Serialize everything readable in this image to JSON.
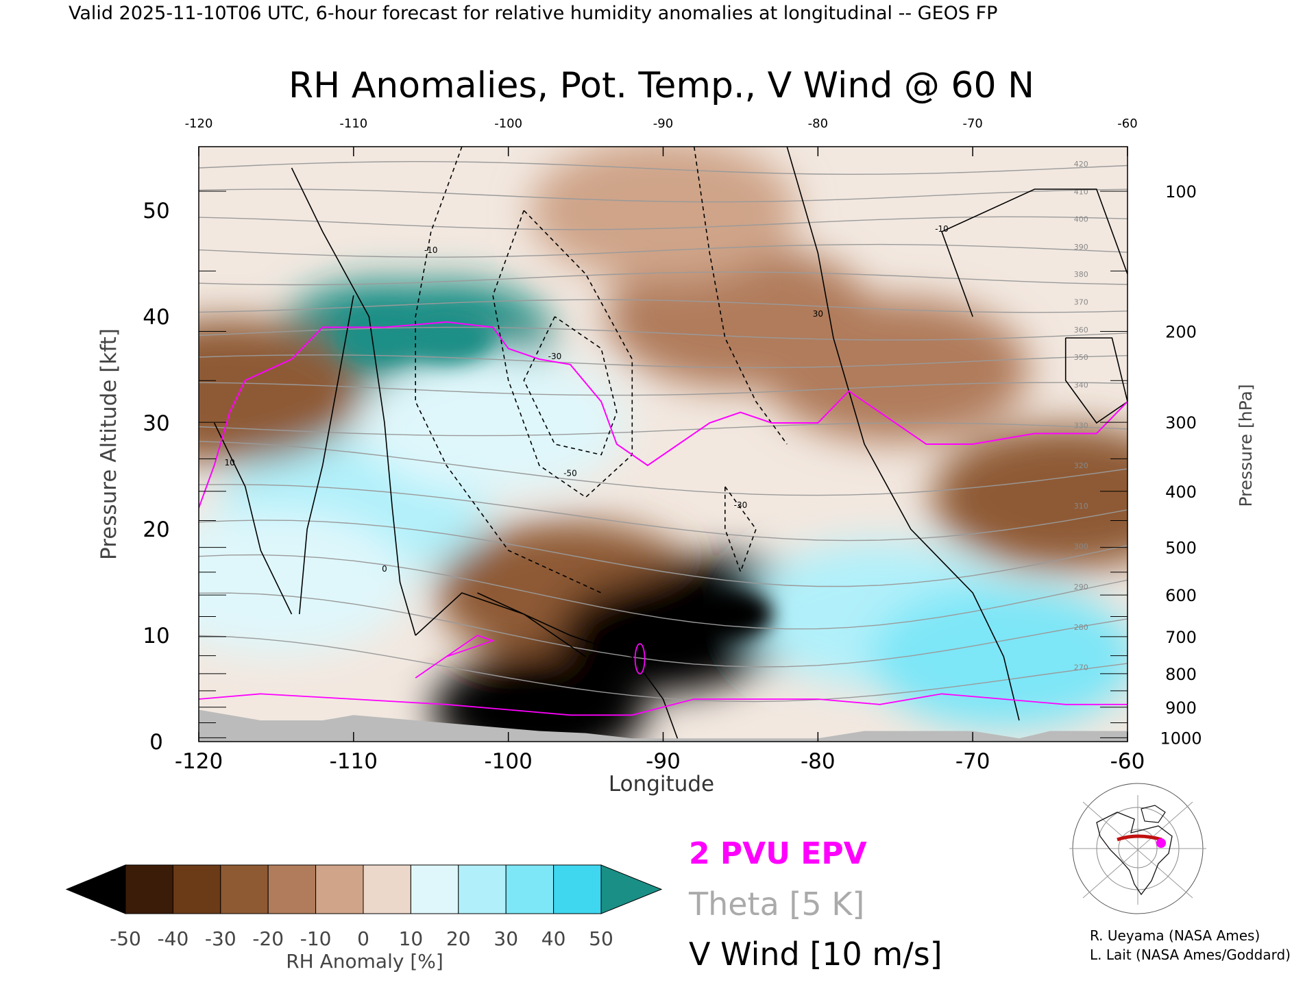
{
  "header": {
    "valid_line": "Valid 2025-11-10T06 UTC, 6-hour forecast for relative humidity anomalies at longitudinal -- GEOS FP"
  },
  "chart_data": {
    "type": "heatmap",
    "title": "RH Anomalies, Pot. Temp., V Wind @ 60 N",
    "xlabel": "Longitude",
    "ylabel_left": "Pressure Altitude [kft]",
    "ylabel_right": "Pressure [hPa]",
    "xlim": [
      -120,
      -60
    ],
    "ylim": [
      0,
      56
    ],
    "x_ticks": [
      "-120",
      "-110",
      "-100",
      "-90",
      "-80",
      "-70",
      "-60"
    ],
    "x_tick_values": [
      -120,
      -110,
      -100,
      -90,
      -80,
      -70,
      -60
    ],
    "y_ticks_left": [
      "0",
      "10",
      "20",
      "30",
      "40",
      "50"
    ],
    "y_tick_values_left": [
      0,
      10,
      20,
      30,
      40,
      50
    ],
    "pressure_ticks": [
      "100",
      "200",
      "300",
      "400",
      "500",
      "600",
      "700",
      "800",
      "900",
      "1000"
    ],
    "pressure_tick_values": [
      100,
      200,
      300,
      400,
      500,
      600,
      700,
      800,
      900,
      1000
    ],
    "colorbar": {
      "label": "RH Anomaly [%]",
      "tick_labels": [
        "-50",
        "-40",
        "-30",
        "-20",
        "-10",
        "0",
        "10",
        "20",
        "30",
        "40",
        "50"
      ],
      "colors": [
        "#000000",
        "#3b1c08",
        "#6b3a17",
        "#8e5a34",
        "#b07c5b",
        "#cfa489",
        "#ecd8cb",
        "#dff7fb",
        "#b1f0fa",
        "#7de6f7",
        "#3fd6f0",
        "#12b6d8",
        "#0c8aa8",
        "#1a8f86"
      ]
    },
    "anomaly_fields": [
      {
        "lon": -108,
        "kft": 38,
        "value": 50
      },
      {
        "lon": -104,
        "kft": 38,
        "value": 50
      },
      {
        "lon": -110,
        "kft": 22,
        "value": 20
      },
      {
        "lon": -115,
        "kft": 15,
        "value": 15
      },
      {
        "lon": -101,
        "kft": 30,
        "value": 15
      },
      {
        "lon": -96,
        "kft": 14,
        "value": -30
      },
      {
        "lon": -90,
        "kft": 10,
        "value": -50
      },
      {
        "lon": -86,
        "kft": 12,
        "value": -50
      },
      {
        "lon": -98,
        "kft": 3,
        "value": -50
      },
      {
        "lon": -76,
        "kft": 12,
        "value": 25
      },
      {
        "lon": -68,
        "kft": 8,
        "value": 30
      },
      {
        "lon": -64,
        "kft": 23,
        "value": -30
      },
      {
        "lon": -75,
        "kft": 35,
        "value": -15
      },
      {
        "lon": -85,
        "kft": 40,
        "value": -15
      },
      {
        "lon": -118,
        "kft": 33,
        "value": -30
      },
      {
        "lon": -90,
        "kft": 50,
        "value": -5
      }
    ],
    "theta_labels": [
      "420",
      "410",
      "400",
      "390",
      "380",
      "370",
      "360",
      "350",
      "340",
      "330",
      "320",
      "310",
      "300",
      "290",
      "280",
      "270"
    ],
    "vwind_labels": [
      "-10",
      "-30",
      "-50",
      "0",
      "10",
      "30"
    ],
    "legend": [
      {
        "label": "2 PVU EPV",
        "color": "#ff00ff"
      },
      {
        "label": "Theta [5 K]",
        "color": "#aaaaaa"
      },
      {
        "label": "V Wind [10 m/s]",
        "color": "#000000"
      }
    ]
  },
  "credits": {
    "line1": "R. Ueyama (NASA Ames)",
    "line2": "L. Lait (NASA Ames/Goddard)"
  }
}
